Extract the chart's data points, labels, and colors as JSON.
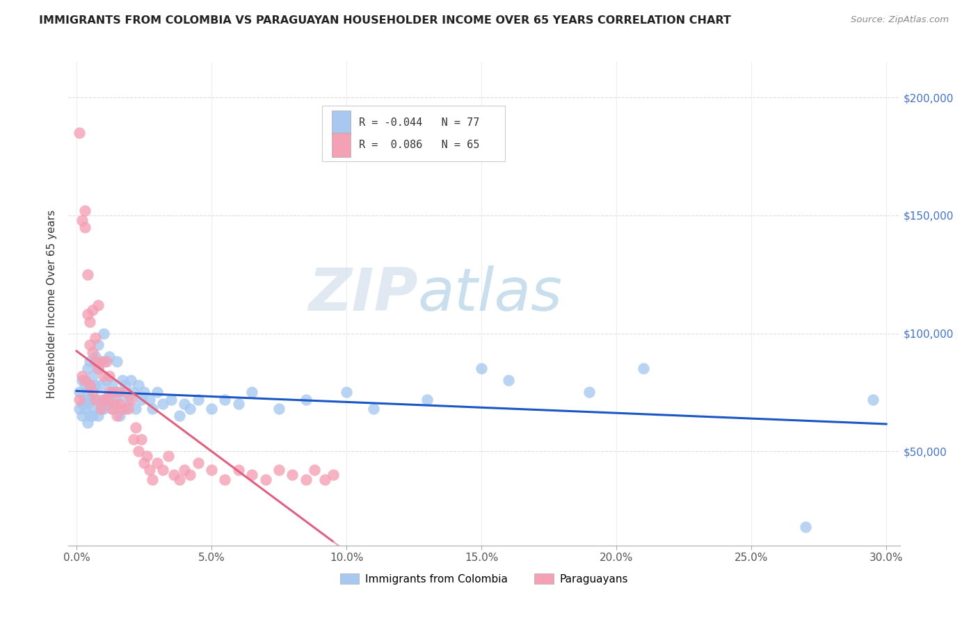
{
  "title": "IMMIGRANTS FROM COLOMBIA VS PARAGUAYAN HOUSEHOLDER INCOME OVER 65 YEARS CORRELATION CHART",
  "source": "Source: ZipAtlas.com",
  "ylabel": "Householder Income Over 65 years",
  "xlabel_ticks": [
    "0.0%",
    "5.0%",
    "10.0%",
    "15.0%",
    "20.0%",
    "25.0%",
    "30.0%"
  ],
  "xlabel_vals": [
    0.0,
    0.05,
    0.1,
    0.15,
    0.2,
    0.25,
    0.3
  ],
  "ylabel_ticks": [
    "$50,000",
    "$100,000",
    "$150,000",
    "$200,000"
  ],
  "ylabel_vals": [
    50000,
    100000,
    150000,
    200000
  ],
  "ylim": [
    10000,
    215000
  ],
  "xlim": [
    -0.003,
    0.305
  ],
  "R_colombia": -0.044,
  "N_colombia": 77,
  "R_paraguay": 0.086,
  "N_paraguay": 65,
  "colombia_color": "#a8c8f0",
  "paraguay_color": "#f4a0b5",
  "colombia_line_color": "#1a56c4",
  "paraguay_line_solid_color": "#e06080",
  "paraguay_line_dash_color": "#e8a0b0",
  "watermark_zip": "ZIP",
  "watermark_atlas": "atlas",
  "colombia_x": [
    0.001,
    0.001,
    0.002,
    0.002,
    0.002,
    0.003,
    0.003,
    0.003,
    0.004,
    0.004,
    0.004,
    0.004,
    0.005,
    0.005,
    0.005,
    0.005,
    0.006,
    0.006,
    0.006,
    0.007,
    0.007,
    0.007,
    0.008,
    0.008,
    0.008,
    0.008,
    0.009,
    0.009,
    0.01,
    0.01,
    0.01,
    0.011,
    0.011,
    0.012,
    0.012,
    0.013,
    0.013,
    0.014,
    0.015,
    0.015,
    0.016,
    0.016,
    0.017,
    0.018,
    0.018,
    0.019,
    0.02,
    0.021,
    0.022,
    0.023,
    0.024,
    0.025,
    0.027,
    0.028,
    0.03,
    0.032,
    0.035,
    0.038,
    0.04,
    0.042,
    0.045,
    0.05,
    0.055,
    0.06,
    0.065,
    0.075,
    0.085,
    0.1,
    0.11,
    0.13,
    0.15,
    0.16,
    0.19,
    0.21,
    0.27,
    0.295,
    0.01
  ],
  "colombia_y": [
    75000,
    68000,
    80000,
    70000,
    65000,
    78000,
    72000,
    68000,
    85000,
    75000,
    70000,
    62000,
    88000,
    78000,
    72000,
    65000,
    82000,
    72000,
    65000,
    90000,
    78000,
    68000,
    95000,
    85000,
    72000,
    65000,
    78000,
    68000,
    100000,
    88000,
    72000,
    80000,
    70000,
    90000,
    72000,
    78000,
    68000,
    75000,
    88000,
    72000,
    75000,
    65000,
    80000,
    78000,
    68000,
    72000,
    80000,
    75000,
    68000,
    78000,
    72000,
    75000,
    72000,
    68000,
    75000,
    70000,
    72000,
    65000,
    70000,
    68000,
    72000,
    68000,
    72000,
    70000,
    75000,
    68000,
    72000,
    75000,
    68000,
    72000,
    85000,
    80000,
    75000,
    85000,
    18000,
    72000,
    68000
  ],
  "paraguay_x": [
    0.001,
    0.001,
    0.002,
    0.002,
    0.003,
    0.003,
    0.003,
    0.004,
    0.004,
    0.005,
    0.005,
    0.005,
    0.006,
    0.006,
    0.006,
    0.007,
    0.007,
    0.007,
    0.008,
    0.008,
    0.009,
    0.009,
    0.01,
    0.01,
    0.011,
    0.011,
    0.012,
    0.012,
    0.013,
    0.013,
    0.014,
    0.015,
    0.015,
    0.016,
    0.017,
    0.018,
    0.019,
    0.02,
    0.021,
    0.022,
    0.023,
    0.024,
    0.025,
    0.026,
    0.027,
    0.028,
    0.03,
    0.032,
    0.034,
    0.036,
    0.038,
    0.04,
    0.042,
    0.045,
    0.05,
    0.055,
    0.06,
    0.065,
    0.07,
    0.075,
    0.08,
    0.085,
    0.088,
    0.092,
    0.095
  ],
  "paraguay_y": [
    185000,
    72000,
    148000,
    82000,
    152000,
    145000,
    80000,
    125000,
    108000,
    105000,
    95000,
    78000,
    110000,
    92000,
    75000,
    98000,
    88000,
    72000,
    112000,
    85000,
    88000,
    68000,
    82000,
    72000,
    88000,
    72000,
    82000,
    75000,
    75000,
    68000,
    70000,
    75000,
    65000,
    70000,
    68000,
    75000,
    68000,
    72000,
    55000,
    60000,
    50000,
    55000,
    45000,
    48000,
    42000,
    38000,
    45000,
    42000,
    48000,
    40000,
    38000,
    42000,
    40000,
    45000,
    42000,
    38000,
    42000,
    40000,
    38000,
    42000,
    40000,
    38000,
    42000,
    38000,
    40000
  ]
}
